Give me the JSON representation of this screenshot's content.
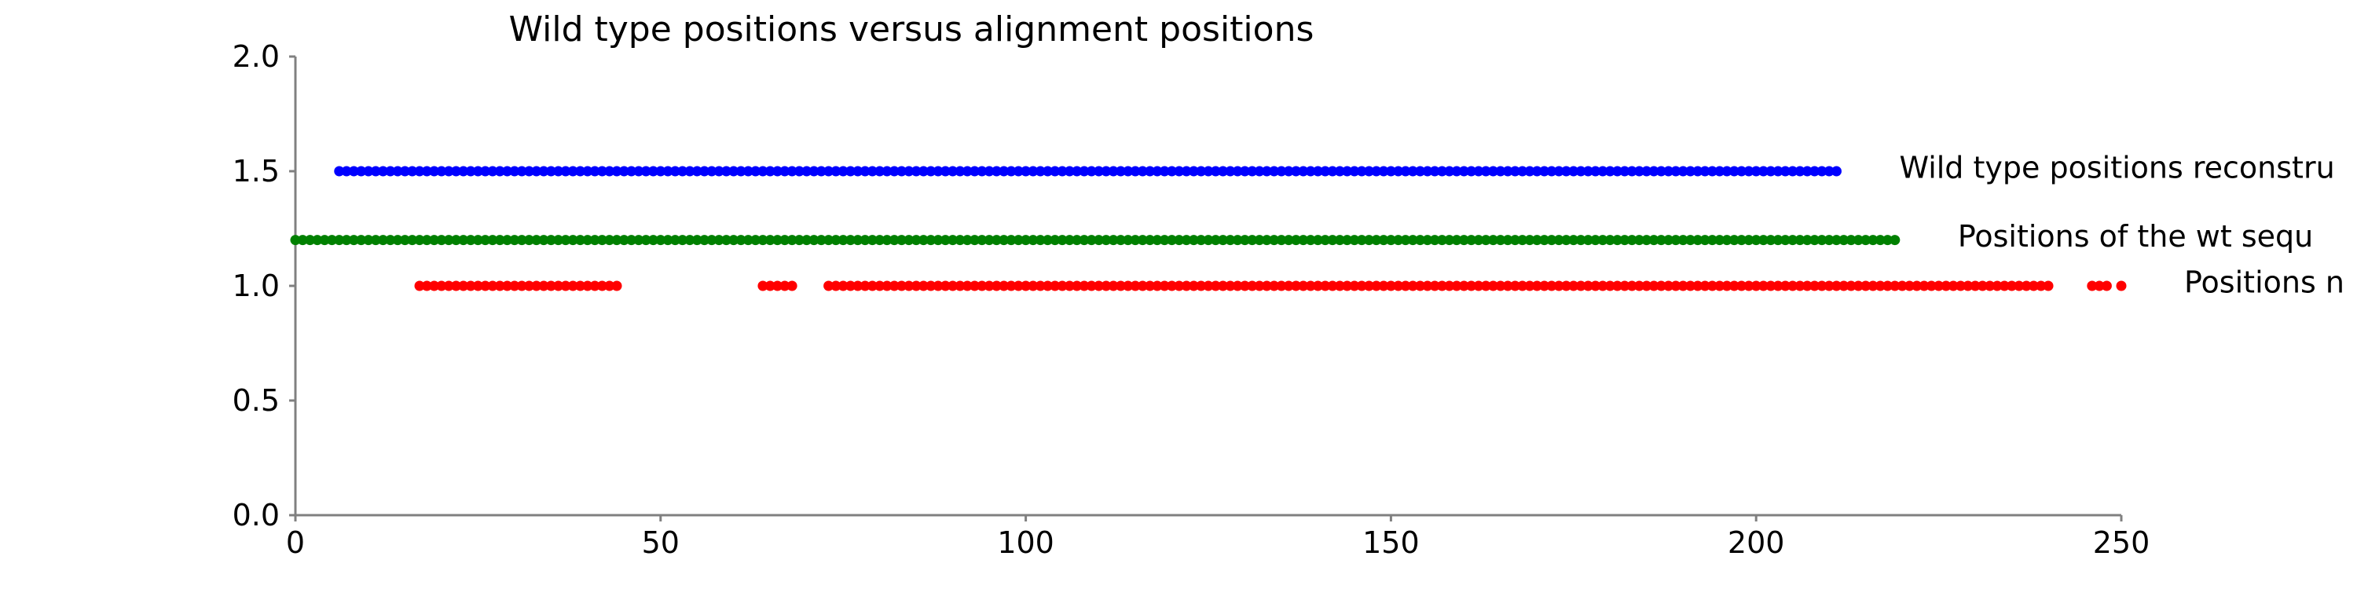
{
  "chart_data": {
    "type": "scatter",
    "title": "Wild type positions versus alignment positions",
    "xlabel": "",
    "ylabel": "",
    "xlim": [
      0,
      250
    ],
    "ylim": [
      0,
      2.0
    ],
    "xticks": [
      "0",
      "50",
      "100",
      "150",
      "200",
      "250"
    ],
    "yticks": [
      "0.0",
      "0.5",
      "1.0",
      "1.5",
      "2.0"
    ],
    "grid": false,
    "series": [
      {
        "name": "Wild type positions reconstru",
        "color": "#0000ff",
        "y": 1.5,
        "ranges": [
          [
            6,
            211
          ]
        ]
      },
      {
        "name": "Positions of the wt sequ",
        "color": "#008000",
        "y": 1.2,
        "ranges": [
          [
            0,
            219
          ]
        ]
      },
      {
        "name": "Positions n",
        "color": "#ff0000",
        "y": 1.0,
        "ranges": [
          [
            17,
            44
          ],
          [
            64,
            68
          ],
          [
            73,
            240
          ],
          [
            246,
            248
          ],
          [
            250,
            250
          ]
        ]
      }
    ]
  }
}
